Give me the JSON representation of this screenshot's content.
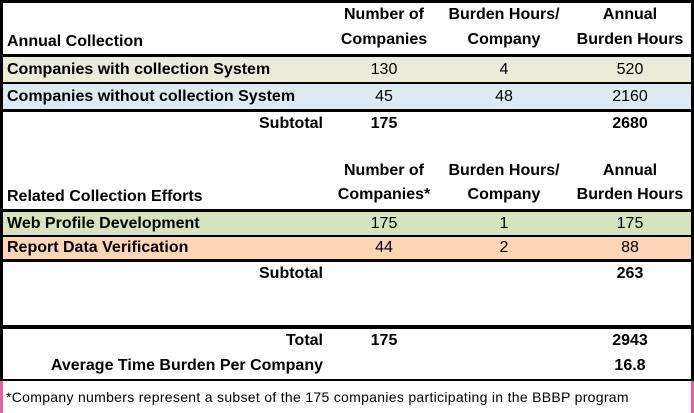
{
  "colors": {
    "row_beige": "#EAECD9",
    "row_blue": "#DAEBF2",
    "row_green": "#D6E3BC",
    "row_orange": "#FCD5B4",
    "border_pink": "#E85F9E"
  },
  "section1": {
    "title": "Annual Collection",
    "columns": [
      {
        "line1": "Number of",
        "line2": "Companies"
      },
      {
        "line1": "Burden Hours/",
        "line2": "Company"
      },
      {
        "line1": "Annual",
        "line2": "Burden Hours"
      }
    ],
    "rows": [
      {
        "label": "Companies with collection System",
        "companies": "130",
        "hours_per": "4",
        "annual": "520"
      },
      {
        "label": "Companies without collection System",
        "companies": "45",
        "hours_per": "48",
        "annual": "2160"
      }
    ],
    "subtotal": {
      "label": "Subtotal",
      "companies": "175",
      "annual": "2680"
    }
  },
  "section2": {
    "title": "Related Collection Efforts",
    "columns": [
      {
        "line1": "Number of",
        "line2": "Companies*"
      },
      {
        "line1": "Burden Hours/",
        "line2": "Company"
      },
      {
        "line1": "Annual",
        "line2": "Burden Hours"
      }
    ],
    "rows": [
      {
        "label": "Web Profile Development",
        "companies": "175",
        "hours_per": "1",
        "annual": "175"
      },
      {
        "label": "Report Data Verification",
        "companies": "44",
        "hours_per": "2",
        "annual": "88"
      }
    ],
    "subtotal": {
      "label": "Subtotal",
      "annual": "263"
    }
  },
  "totals": {
    "total_label": "Total",
    "total_companies": "175",
    "total_annual": "2943",
    "average_label": "Average Time Burden Per Company",
    "average_value": "16.8"
  },
  "footnote": "*Company numbers represent a subset of the 175 companies participating in the BBBP program"
}
